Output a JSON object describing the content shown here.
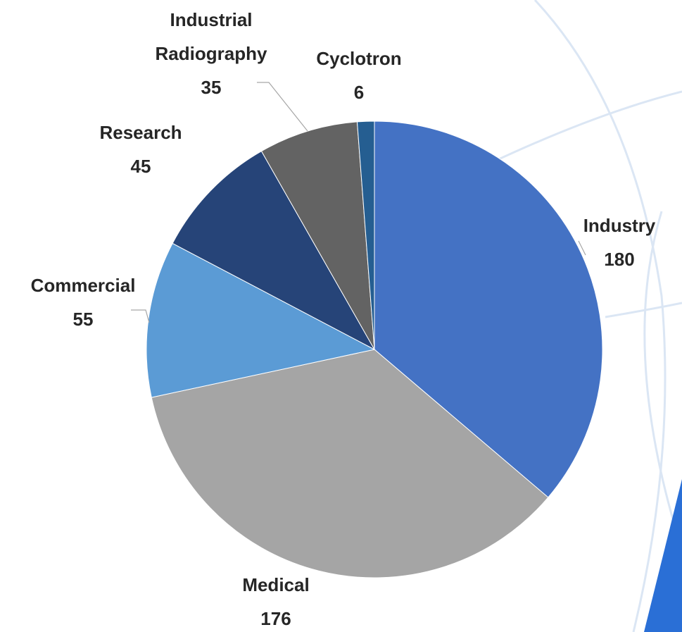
{
  "chart_data": {
    "type": "pie",
    "categories": [
      "Industry",
      "Medical",
      "Commercial",
      "Research",
      "Industrial Radiography",
      "Cyclotron"
    ],
    "values": [
      180,
      176,
      55,
      45,
      35,
      6
    ],
    "colors": [
      "#4472c4",
      "#a5a5a5",
      "#5b9bd5",
      "#264478",
      "#636363",
      "#255e91"
    ]
  }
}
